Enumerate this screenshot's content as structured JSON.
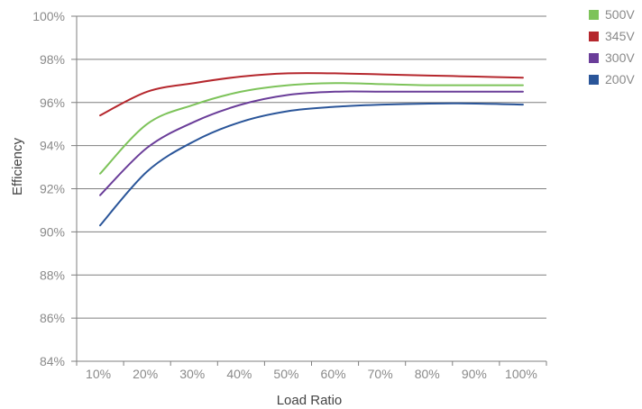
{
  "chart_data": {
    "type": "line",
    "xlabel": "Load Ratio",
    "ylabel": "Efficiency",
    "x": [
      10,
      20,
      30,
      40,
      50,
      60,
      70,
      80,
      90,
      100
    ],
    "x_tick_labels": [
      "10%",
      "20%",
      "30%",
      "40%",
      "50%",
      "60%",
      "70%",
      "80%",
      "90%",
      "100%"
    ],
    "xlim": [
      5,
      105
    ],
    "ylim": [
      84,
      100
    ],
    "y_ticks": [
      84,
      86,
      88,
      90,
      92,
      94,
      96,
      98,
      100
    ],
    "y_tick_labels": [
      "84%",
      "86%",
      "88%",
      "90%",
      "92%",
      "94%",
      "96%",
      "98%",
      "100%"
    ],
    "grid": "horizontal",
    "legend_position": "top-right",
    "series": [
      {
        "name": "500V",
        "color": "#7dc35a",
        "values": [
          92.7,
          95.0,
          95.9,
          96.5,
          96.8,
          96.9,
          96.85,
          96.8,
          96.8,
          96.8
        ]
      },
      {
        "name": "345V",
        "color": "#b5272d",
        "values": [
          95.4,
          96.5,
          96.9,
          97.2,
          97.35,
          97.35,
          97.3,
          97.25,
          97.2,
          97.15
        ]
      },
      {
        "name": "300V",
        "color": "#6a3d99",
        "values": [
          91.7,
          93.9,
          95.1,
          95.9,
          96.35,
          96.5,
          96.5,
          96.5,
          96.5,
          96.5
        ]
      },
      {
        "name": "200V",
        "color": "#2a5599",
        "values": [
          90.3,
          92.8,
          94.2,
          95.1,
          95.6,
          95.8,
          95.9,
          95.95,
          95.95,
          95.9
        ]
      }
    ]
  }
}
